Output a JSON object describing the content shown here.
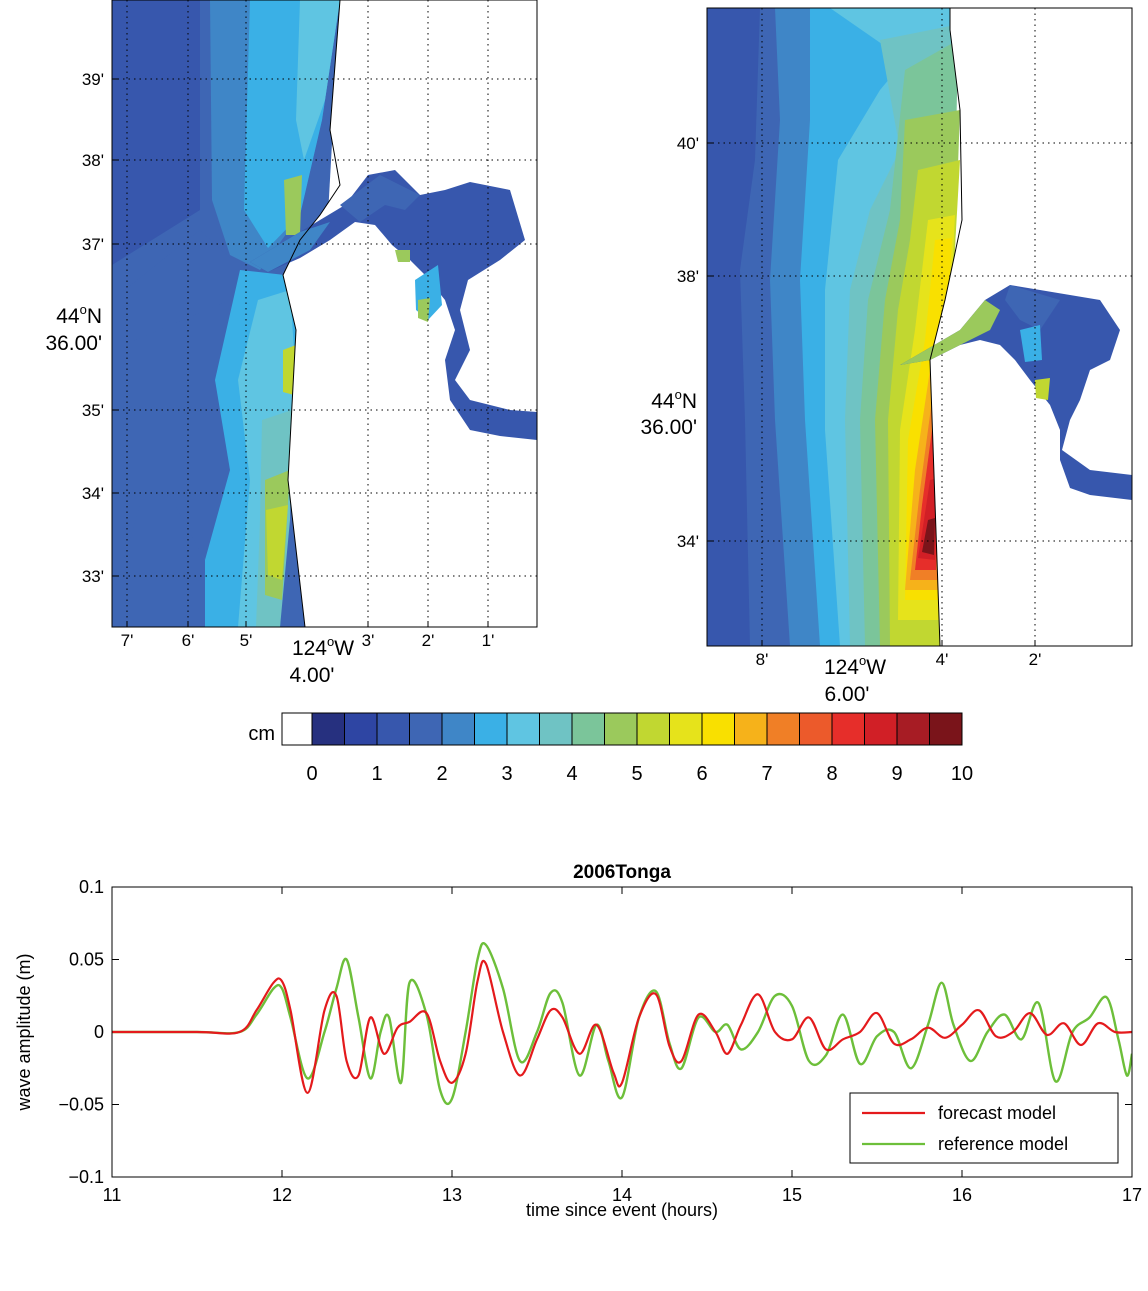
{
  "colors": {
    "land": "#ffffff",
    "forecast": "#e41a1c",
    "reference": "#6dbf3a",
    "colorbar": [
      "#ffffff",
      "#26307f",
      "#2e45a3",
      "#3757ad",
      "#3e66b4",
      "#3f86c7",
      "#3ab0e6",
      "#5fc5e2",
      "#6fc3c4",
      "#7bc59a",
      "#9bc95c",
      "#c1d731",
      "#e6e31b",
      "#f9e000",
      "#f6b21a",
      "#f07f26",
      "#ec5a2b",
      "#e62e2a",
      "#d11f26",
      "#a71c24",
      "#7a141a"
    ]
  },
  "map_left": {
    "lat_ticks": [
      "39'",
      "38'",
      "37'",
      "35'",
      "34'",
      "33'"
    ],
    "lon_ticks": [
      "7'",
      "6'",
      "5'",
      "3'",
      "2'",
      "1'"
    ],
    "lat_label": [
      "44",
      "N",
      "36.00'"
    ],
    "lon_label": [
      "124",
      "W",
      "4.00'"
    ]
  },
  "map_right": {
    "lat_ticks": [
      "40'",
      "38'",
      "34'"
    ],
    "lon_ticks": [
      "8'",
      "4'",
      "2'"
    ],
    "lat_label": [
      "44",
      "N",
      "36.00'"
    ],
    "lon_label": [
      "124",
      "W",
      "6.00'"
    ]
  },
  "colorbar": {
    "unit": "cm",
    "labels": [
      "0",
      "1",
      "2",
      "3",
      "4",
      "5",
      "6",
      "7",
      "8",
      "9",
      "10"
    ],
    "degree_mark": "o"
  },
  "chart_data": {
    "type": "line",
    "title": "2006Tonga",
    "xlabel": "time since event (hours)",
    "ylabel": "wave amplitude (m)",
    "xlim": [
      11,
      17
    ],
    "ylim": [
      -0.1,
      0.1
    ],
    "xticks": [
      "11",
      "12",
      "13",
      "14",
      "15",
      "16",
      "17"
    ],
    "yticks": [
      "0.1",
      "0.05",
      "0",
      "−0.05",
      "−0.1"
    ],
    "legend": "bottom-right",
    "series": [
      {
        "name": "forecast model",
        "x": [
          11.0,
          11.5,
          11.75,
          11.85,
          11.95,
          12.0,
          12.05,
          12.15,
          12.25,
          12.32,
          12.38,
          12.45,
          12.52,
          12.6,
          12.68,
          12.75,
          12.85,
          12.93,
          13.0,
          13.08,
          13.15,
          13.2,
          13.3,
          13.4,
          13.5,
          13.58,
          13.65,
          13.75,
          13.85,
          13.95,
          14.0,
          14.1,
          14.2,
          14.28,
          14.35,
          14.45,
          14.55,
          14.62,
          14.7,
          14.8,
          14.9,
          15.0,
          15.1,
          15.2,
          15.3,
          15.4,
          15.5,
          15.6,
          15.7,
          15.8,
          15.9,
          16.0,
          16.1,
          16.2,
          16.3,
          16.4,
          16.5,
          16.6,
          16.7,
          16.8,
          16.9,
          17.0
        ],
        "y": [
          0.0,
          0.0,
          0.0,
          0.015,
          0.034,
          0.035,
          0.015,
          -0.042,
          0.015,
          0.025,
          -0.02,
          -0.03,
          0.01,
          -0.015,
          0.003,
          0.007,
          0.013,
          -0.02,
          -0.035,
          -0.015,
          0.035,
          0.047,
          0.0,
          -0.03,
          -0.005,
          0.015,
          0.01,
          -0.015,
          0.005,
          -0.028,
          -0.035,
          0.01,
          0.026,
          -0.01,
          -0.02,
          0.012,
          0.0,
          -0.015,
          0.005,
          0.026,
          0.0,
          -0.005,
          0.01,
          -0.012,
          -0.005,
          0.0,
          0.013,
          -0.008,
          -0.005,
          0.003,
          -0.004,
          0.005,
          0.015,
          -0.003,
          0.0,
          0.013,
          -0.002,
          0.006,
          -0.009,
          0.006,
          0.0,
          0.0
        ]
      },
      {
        "name": "reference model",
        "x": [
          11.0,
          11.5,
          11.75,
          11.85,
          11.95,
          12.0,
          12.05,
          12.15,
          12.25,
          12.32,
          12.38,
          12.45,
          12.52,
          12.58,
          12.63,
          12.7,
          12.75,
          12.85,
          12.93,
          13.0,
          13.08,
          13.15,
          13.2,
          13.3,
          13.4,
          13.5,
          13.58,
          13.65,
          13.75,
          13.85,
          13.92,
          14.0,
          14.1,
          14.2,
          14.28,
          14.35,
          14.45,
          14.55,
          14.62,
          14.7,
          14.8,
          14.9,
          15.0,
          15.1,
          15.2,
          15.3,
          15.4,
          15.5,
          15.6,
          15.7,
          15.8,
          15.88,
          15.95,
          16.05,
          16.15,
          16.25,
          16.35,
          16.45,
          16.55,
          16.65,
          16.75,
          16.85,
          16.92,
          16.97,
          17.0
        ],
        "y": [
          0.0,
          0.0,
          0.0,
          0.012,
          0.03,
          0.03,
          0.01,
          -0.032,
          0.0,
          0.03,
          0.05,
          0.01,
          -0.032,
          0.0,
          0.01,
          -0.035,
          0.034,
          0.012,
          -0.04,
          -0.046,
          0.0,
          0.05,
          0.06,
          0.03,
          -0.02,
          0.0,
          0.027,
          0.02,
          -0.03,
          0.005,
          -0.02,
          -0.045,
          0.01,
          0.028,
          -0.008,
          -0.025,
          0.01,
          0.0,
          0.005,
          -0.012,
          0.0,
          0.025,
          0.018,
          -0.02,
          -0.016,
          0.012,
          -0.022,
          -0.003,
          0.0,
          -0.025,
          0.005,
          0.034,
          0.005,
          -0.02,
          0.0,
          0.012,
          -0.005,
          0.02,
          -0.034,
          0.0,
          0.01,
          0.024,
          -0.005,
          -0.03,
          -0.015
        ]
      }
    ]
  }
}
